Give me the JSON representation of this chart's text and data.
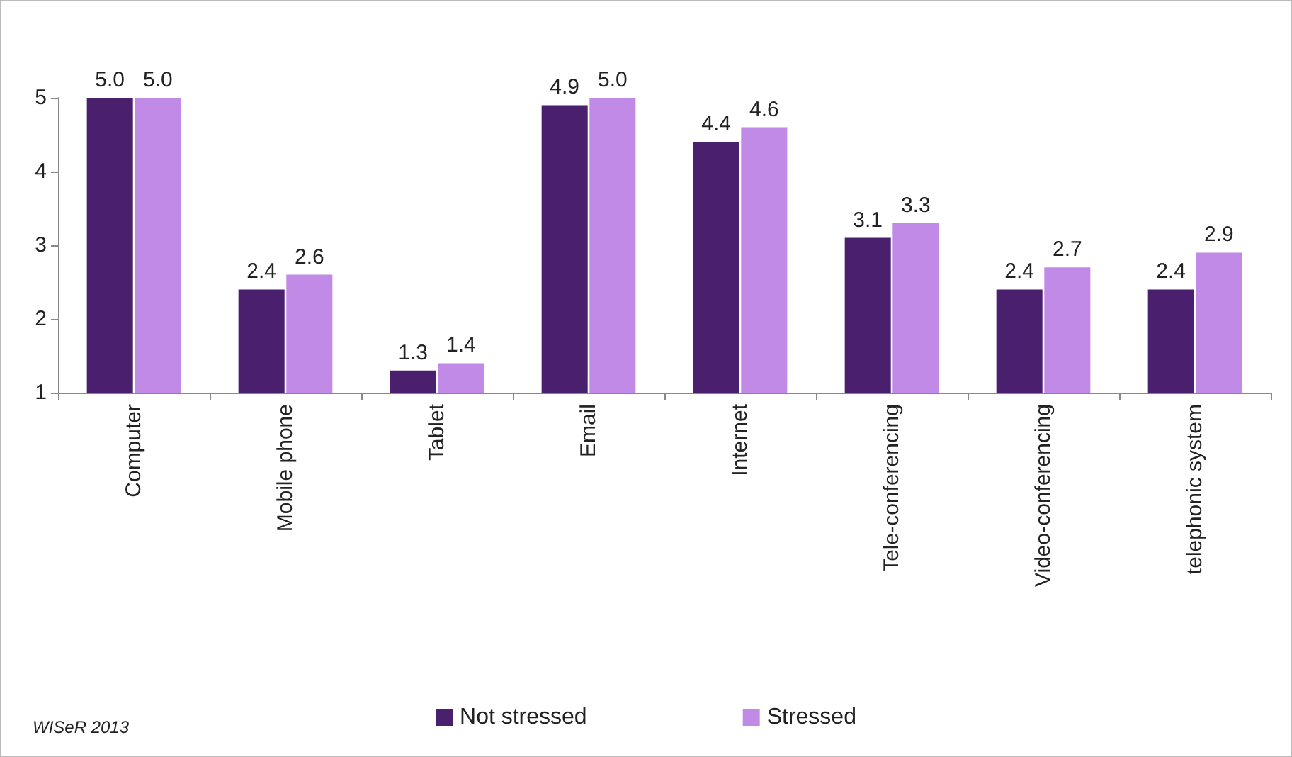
{
  "chart_data": {
    "type": "bar",
    "categories": [
      "Computer",
      "Mobile phone",
      "Tablet",
      "Email",
      "Internet",
      "Tele-conferencing",
      "Video-conferencing",
      "telephonic system"
    ],
    "series": [
      {
        "name": "Not stressed",
        "color": "#4a1f6e",
        "values": [
          5.0,
          2.4,
          1.3,
          4.9,
          4.4,
          3.1,
          2.4,
          2.4
        ],
        "value_labels": [
          "5.0",
          "2.4",
          "1.3",
          "4.9",
          "4.4",
          "3.1",
          "2.4",
          "2.4"
        ]
      },
      {
        "name": "Stressed",
        "color": "#c08ae6",
        "values": [
          5.0,
          2.6,
          1.4,
          5.0,
          4.6,
          3.3,
          2.7,
          2.9
        ],
        "value_labels": [
          "5.0",
          "2.6",
          "1.4",
          "5.0",
          "4.6",
          "3.3",
          "2.7",
          "2.9"
        ]
      }
    ],
    "ylim": [
      1,
      5
    ],
    "yticks": [
      1,
      2,
      3,
      4,
      5
    ],
    "grid": false,
    "legend": "bottom",
    "annotations": [
      "WISeR 2013"
    ]
  }
}
